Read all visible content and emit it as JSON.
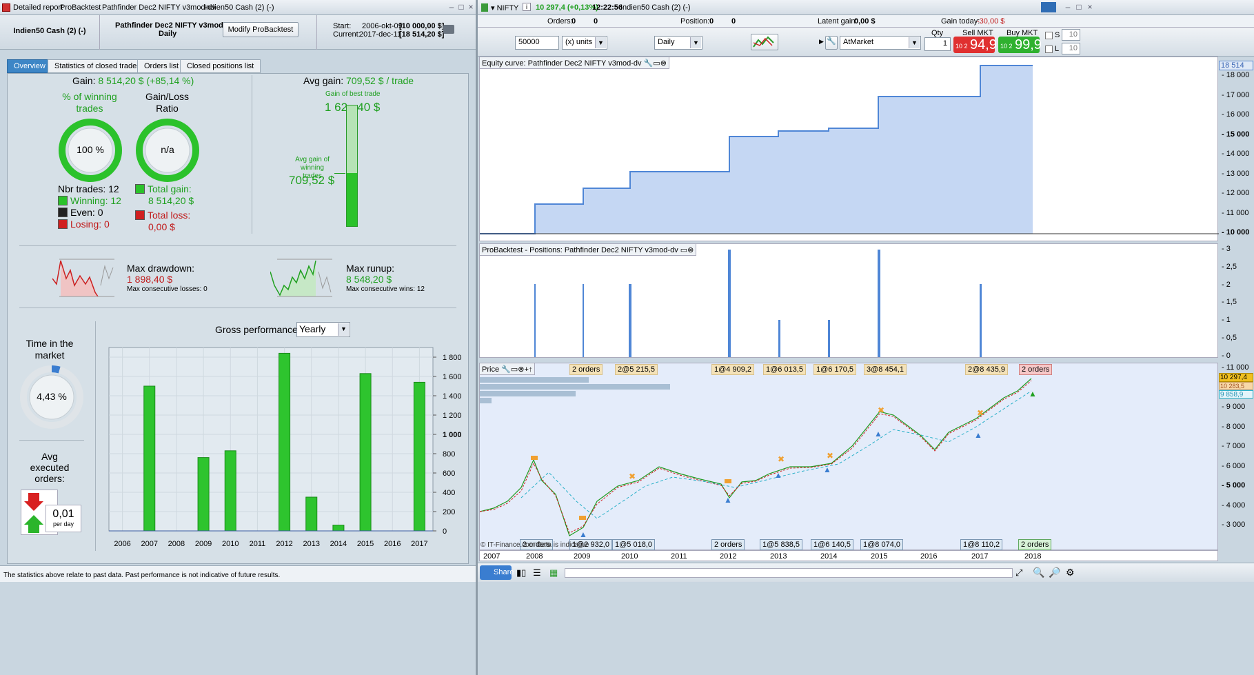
{
  "left": {
    "titlebar": {
      "tabs": [
        "Detailed report",
        "ProBacktest",
        "Pathfinder Dec2 NIFTY v3mod-dv",
        "Indien50 Cash (2) (-)"
      ]
    },
    "header": {
      "instrument": "Indien50 Cash (2) (-)",
      "system_name": "Pathfinder Dec2 NIFTY v3mod-dv",
      "system_period": "Daily",
      "modify_button": "Modify ProBacktest",
      "start_label": "Start:",
      "start_date": "2006-okt-09",
      "start_value": "[10 000,00 $]",
      "current_label": "Current:",
      "current_date": "2017-dec-11",
      "current_value": "[18 514,20 $]"
    },
    "tabs": [
      "Overview",
      "Statistics of closed trades",
      "Orders list",
      "Closed positions list"
    ],
    "overview": {
      "gain_label": "Gain:",
      "gain_value": "8 514,20 $ (+85,14 %)",
      "winning_label_1": "% of winning",
      "winning_label_2": "trades",
      "winning_pct": "100 %",
      "winning_fraction": 1.0,
      "ratio_label_1": "Gain/Loss",
      "ratio_label_2": "Ratio",
      "ratio_value": "n/a",
      "nbr_trades": "Nbr trades: 12",
      "winning": "Winning: 12",
      "even": "Even: 0",
      "losing": "Losing: 0",
      "total_gain_label": "Total gain:",
      "total_gain_value": "8 514,20 $",
      "total_loss_label": "Total loss:",
      "total_loss_value": "0,00 $",
      "avg_gain_label": "Avg gain:",
      "avg_gain_value": "709,52 $ / trade",
      "best_trade_label": "Gain of best trade",
      "best_trade_value": "1 62_,40 $",
      "avg_win_label_1": "Avg gain of",
      "avg_win_label_2": "winning trades",
      "avg_win_value": "709,52 $",
      "avg_bar_fraction": 0.44,
      "max_drawdown_label": "Max drawdown:",
      "max_drawdown_value": "1 898,40 $",
      "max_cons_losses": "Max consecutive losses: 0",
      "max_runup_label": "Max runup:",
      "max_runup_value": "8 548,20 $",
      "max_cons_wins": "Max consecutive wins: 12",
      "time_market_1": "Time in the",
      "time_market_2": "market",
      "time_market_value": "4,43 %",
      "time_market_fraction": 0.0443,
      "avg_orders_1": "Avg",
      "avg_orders_2": "executed",
      "avg_orders_3": "orders:",
      "avg_orders_value": "0,01",
      "avg_orders_unit": "per day",
      "gross_label": "Gross performance",
      "gross_select": "Yearly",
      "footer": "The statistics above relate to past data. Past performance is not indicative of future results."
    }
  },
  "chart_data": {
    "type": "bar",
    "title": "Gross performance",
    "categories": [
      "2006",
      "2007",
      "2008",
      "2009",
      "2010",
      "2011",
      "2012",
      "2013",
      "2014",
      "2015",
      "2016",
      "2017"
    ],
    "values": [
      0,
      1500,
      0,
      760,
      830,
      0,
      1840,
      350,
      60,
      1630,
      0,
      1540
    ],
    "ylim": [
      0,
      1900
    ],
    "yticks": [
      0,
      200,
      400,
      600,
      800,
      1000,
      1200,
      1400,
      1600,
      1800
    ],
    "ytick_labels": [
      "0",
      "200",
      "400",
      "600",
      "800",
      "1 000",
      "1 200",
      "1 400",
      "1 600",
      "1 800"
    ],
    "grid": true,
    "color": "#2ec42e"
  },
  "right": {
    "titlebar": {
      "symbol": "NIFTY",
      "price": "10 297,4 (+0,13%)",
      "time": "12:22:56",
      "instrument": "Indien50 Cash (2) (-)"
    },
    "status": {
      "orders_label": "Orders:",
      "orders_value": "0",
      "orders_value2": "0",
      "position_label": "Position:",
      "position_value": "0",
      "position_value2": "0",
      "latent_label": "Latent gain:",
      "latent_value": "0,00 $",
      "today_label": "Gain today:",
      "today_value": "-30,00 $"
    },
    "toolbar": {
      "qty_input": "50000",
      "units": "(x) units",
      "period": "Daily",
      "order_type": "AtMarket",
      "qty_label": "Qty",
      "qty_value": "1",
      "sell_label": "Sell MKT",
      "sell_small": "10 2",
      "sell_big": "94,9",
      "buy_label": "Buy MKT",
      "buy_small": "10 2",
      "buy_big": "99,9",
      "s_label": "S",
      "s_value": "10",
      "l_label": "L",
      "l_value": "10"
    },
    "equity": {
      "title": "Equity curve: Pathfinder Dec2 NIFTY v3mod-dv",
      "last": "18 514",
      "ticks": [
        "18 000",
        "17 000",
        "16 000",
        "15 000",
        "14 000",
        "13 000",
        "12 000",
        "11 000",
        "10 000"
      ]
    },
    "positions": {
      "title": "ProBacktest - Positions: Pathfinder Dec2 NIFTY v3mod-dv",
      "ticks": [
        "3",
        "2,5",
        "2",
        "1,5",
        "1",
        "0,5",
        "0"
      ]
    },
    "price": {
      "title": "Price",
      "ticks": [
        "11 000",
        "10 000",
        "9 000",
        "8 000",
        "7 000",
        "6 000",
        "5 000",
        "4 000",
        "3 000"
      ],
      "last": "10 297,4",
      "ma1": "10 283,5",
      "ma2": "9 858,9",
      "copyright": "© IT-Finance.com Data is indicative",
      "top_labels": [
        "2 orders",
        "2@5 215,5",
        "1@4 909,2",
        "1@6 013,5",
        "1@6 170,5",
        "3@8 454,1",
        "2@8 435,9",
        "2 orders"
      ],
      "bottom_labels": [
        "2 orders",
        "1@2 932,0",
        "1@5 018,0",
        "2 orders",
        "1@5 838,5",
        "1@6 140,5",
        "1@8 074,0",
        "1@8 110,2",
        "2 orders"
      ],
      "years": [
        "2007",
        "2008",
        "2009",
        "2010",
        "2011",
        "2012",
        "2013",
        "2014",
        "2015",
        "2016",
        "2017",
        "2018"
      ]
    },
    "bottombar": {
      "share": "Share"
    }
  }
}
